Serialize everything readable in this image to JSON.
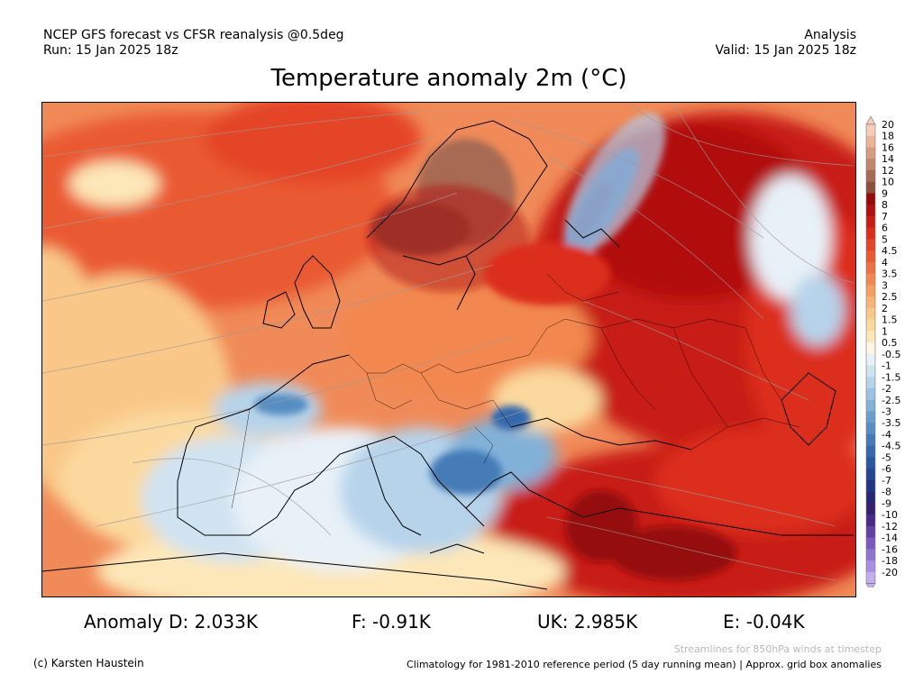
{
  "header": {
    "left_line1": "NCEP GFS forecast vs CFSR reanalysis @0.5deg",
    "left_line2": "Run: 15 Jan 2025 18z",
    "right_line1": "Analysis",
    "right_line2": "Valid: 15 Jan 2025 18z"
  },
  "title": "Temperature anomaly 2m (°C)",
  "legend": {
    "labels": [
      "20",
      "18",
      "16",
      "14",
      "12",
      "10",
      "9",
      "8",
      "7",
      "6",
      "5",
      "4.5",
      "4",
      "3.5",
      "3",
      "2.5",
      "2",
      "1.5",
      "1",
      "0.5",
      "-0.5",
      "-1",
      "-1.5",
      "-2",
      "-2.5",
      "-3",
      "-3.5",
      "-4",
      "-4.5",
      "-5",
      "-6",
      "-7",
      "-8",
      "-9",
      "-10",
      "-12",
      "-14",
      "-16",
      "-18",
      "-20"
    ],
    "colors": [
      "#f6cdb6",
      "#ecb497",
      "#d89c7e",
      "#c4856a",
      "#a86a52",
      "#8c4f3a",
      "#960a0a",
      "#b20f0f",
      "#c81c14",
      "#dc2e1c",
      "#e44428",
      "#ea5a32",
      "#ef7040",
      "#f28850",
      "#f5a062",
      "#f7b474",
      "#f9c888",
      "#fbd99e",
      "#fde7b8",
      "#fef5e2",
      "#e8f1f8",
      "#d0e3f1",
      "#b6d3ea",
      "#9cc2e2",
      "#82b1d8",
      "#6a9fcd",
      "#568dc2",
      "#447bb7",
      "#3569ac",
      "#2a57a0",
      "#244592",
      "#223584",
      "#262874",
      "#34206c",
      "#4a2a86",
      "#6440a6",
      "#7a5ac0",
      "#9074d4",
      "#a88ee2",
      "#c2aeee"
    ]
  },
  "stats": {
    "d": "Anomaly D: 2.033K",
    "f": "F: -0.91K",
    "uk": "UK: 2.985K",
    "e": "E: -0.04K"
  },
  "footer": {
    "credit": "(c) Karsten Haustein",
    "streamlines": "Streamlines for 850hPa winds at timestep",
    "climatology": "Climatology for 1981-2010 reference period (5 day running mean) | Approx. grid box anomalies"
  }
}
